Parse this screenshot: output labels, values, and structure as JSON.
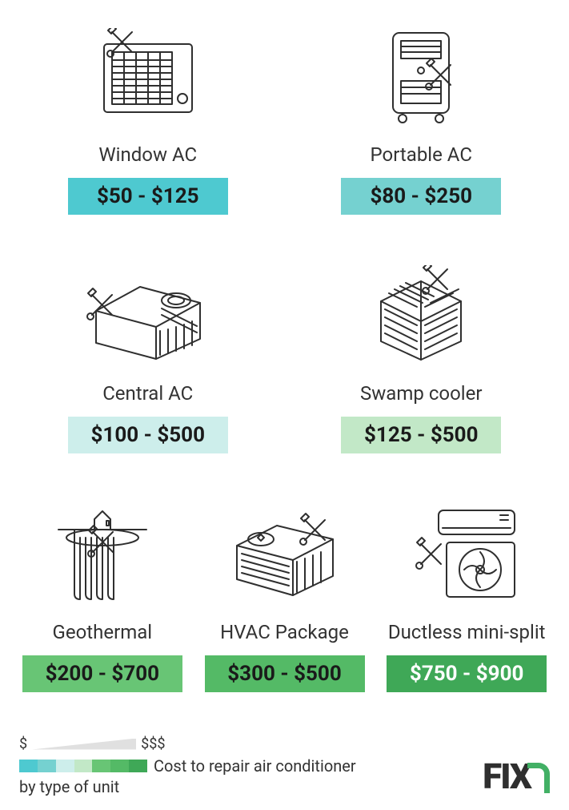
{
  "infographic": {
    "type": "infographic",
    "background_color": "#ffffff",
    "items": [
      {
        "label": "Window AC",
        "price": "$50 - $125",
        "badge_color": "#4ec9d0",
        "text_color": "#1a1a1a"
      },
      {
        "label": "Portable AC",
        "price": "$80 - $250",
        "badge_color": "#75d1d0",
        "text_color": "#1a1a1a"
      },
      {
        "label": "Central AC",
        "price": "$100 - $500",
        "badge_color": "#cdeeeb",
        "text_color": "#1a1a1a"
      },
      {
        "label": "Swamp cooler",
        "price": "$125 - $500",
        "badge_color": "#c2e8c7",
        "text_color": "#1a1a1a"
      },
      {
        "label": "Geothermal",
        "price": "$200 - $700",
        "badge_color": "#68c575",
        "text_color": "#1a1a1a"
      },
      {
        "label": "HVAC Package",
        "price": "$300 - $500",
        "badge_color": "#54ba66",
        "text_color": "#1a1a1a"
      },
      {
        "label": "Ductless mini-split",
        "price": "$750 - $900",
        "badge_color": "#3fa857",
        "text_color": "#ffffff"
      }
    ],
    "label_fontsize": 24,
    "price_fontsize": 26,
    "price_fontweight": 700,
    "icon_stroke": "#2f2f2f"
  },
  "legend": {
    "low_symbol": "$",
    "high_symbol": "$$$",
    "caption_line1": "Cost to repair air conditioner",
    "caption_line2": "by type of unit",
    "gradient_colors": [
      "#4ec9d0",
      "#75d1d0",
      "#cdeeeb",
      "#c2e8c7",
      "#68c575",
      "#54ba66",
      "#3fa857"
    ],
    "caption_fontsize": 20,
    "caption_color": "#333333"
  },
  "brand": {
    "name": "FIX",
    "accent_color": "#42b065",
    "text_color": "#2f2f2f"
  }
}
